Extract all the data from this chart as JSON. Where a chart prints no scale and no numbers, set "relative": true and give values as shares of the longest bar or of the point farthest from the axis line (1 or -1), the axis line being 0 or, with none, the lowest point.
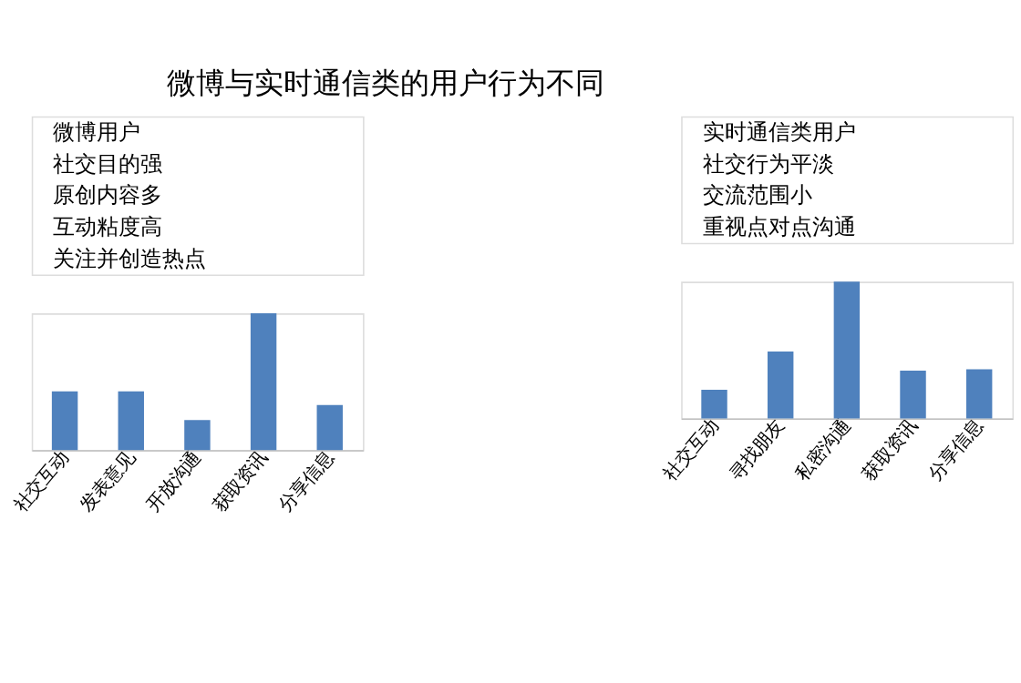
{
  "chart_data": [
    {
      "type": "bar",
      "title": "微博与实时通信类的用户行为不同",
      "relative": true,
      "color": "#4f81bd",
      "categories": [
        "社交互动",
        "发表意见",
        "开放沟通",
        "获取资讯",
        "分享信息"
      ],
      "values": [
        0.43,
        0.43,
        0.22,
        1,
        0.33
      ],
      "annotations": [
        "微博用户",
        "社交目的强",
        "原创内容多",
        "互动粘度高",
        "关注并创造热点"
      ]
    },
    {
      "type": "bar",
      "relative": true,
      "color": "#4f81bd",
      "categories": [
        "社交互动",
        "寻找朋友",
        "私密沟通",
        "获取资讯",
        "分享信息"
      ],
      "values": [
        0.21,
        0.49,
        1,
        0.35,
        0.36
      ],
      "annotations": [
        "实时通信类用户",
        "社交行为平淡",
        "交流范围小",
        "重视点对点沟通"
      ]
    }
  ]
}
